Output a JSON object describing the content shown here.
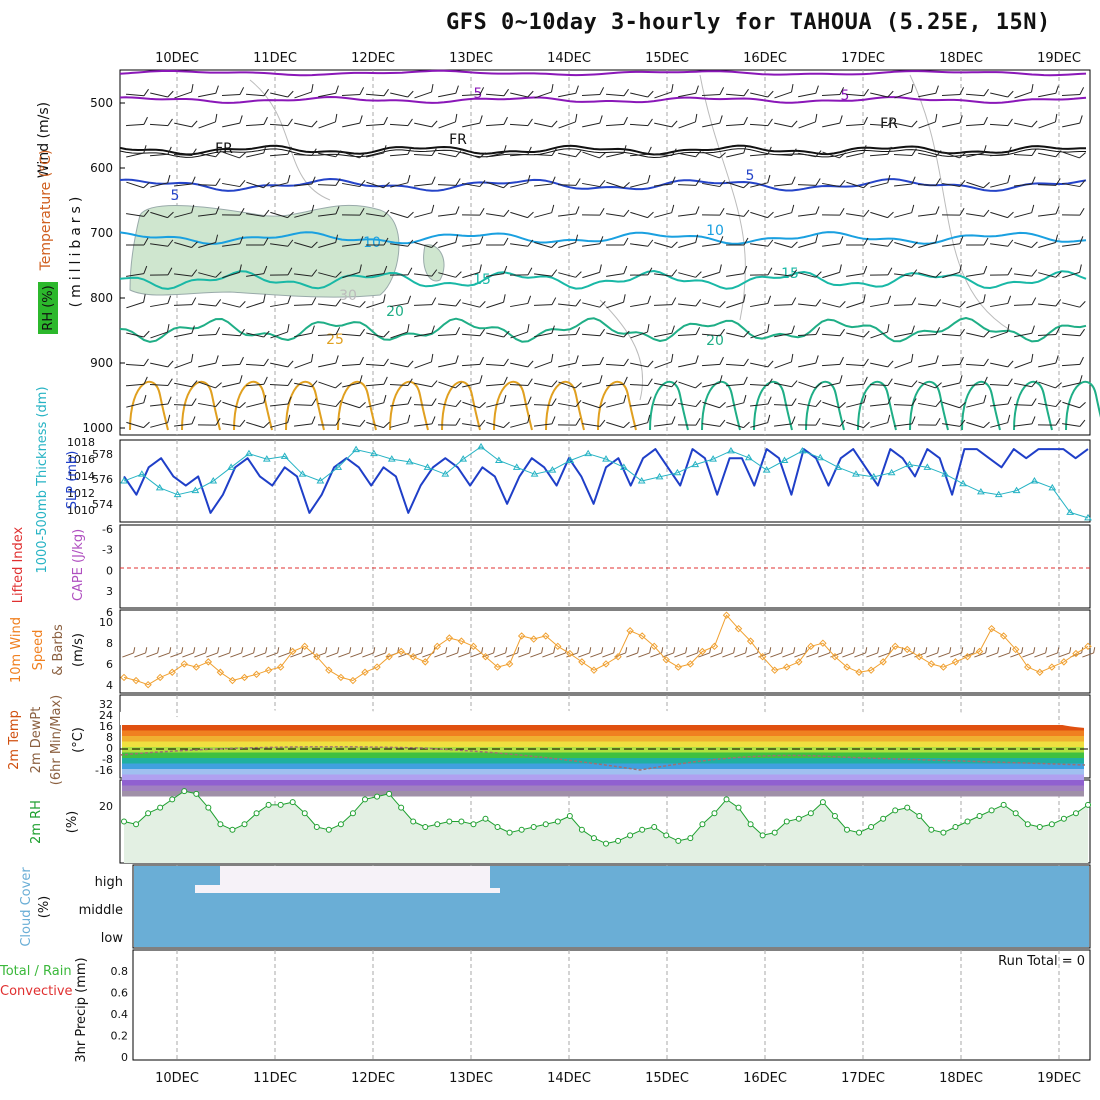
{
  "title": "GFS 0~10day 3-hourly for TAHOUA (5.25E, 15N)",
  "colors": {
    "wind_barb": "#222222",
    "iso_500": "#8a17b8",
    "iso_fr": "#111111",
    "iso_5": "#2544c8",
    "iso_10": "#1aa0e0",
    "iso_15": "#19b8a6",
    "iso_20": "#1fae86",
    "iso_25": "#e0a020",
    "rh_fill": "#cfe6cf",
    "slp": "#1f3fc8",
    "thickness": "#26b3c4",
    "wind10": "#f0a030",
    "temp_warm": "#d05010",
    "rh2m": "#1fa030",
    "cloud": "#6aaed6",
    "precip_total": "#3bb83b",
    "precip_conv": "#e03030"
  },
  "date_axis": [
    "10DEC",
    "11DEC",
    "12DEC",
    "13DEC",
    "14DEC",
    "15DEC",
    "16DEC",
    "17DEC",
    "18DEC",
    "19DEC"
  ],
  "panels": {
    "upper": {
      "ylabel_wind": "Wind (m/s)",
      "ylabel_temp": "Temperature (°C)",
      "ylabel_rh": "RH (%)",
      "ylabel_mb": "(millibars)",
      "ticks": [
        "500",
        "600",
        "700",
        "800",
        "900",
        "1000"
      ],
      "contour_labels": [
        "5",
        "5",
        "FR",
        "FR",
        "FR",
        "5",
        "5",
        "10",
        "10",
        "15",
        "15",
        "20",
        "20",
        "25",
        "30"
      ]
    },
    "pressure": {
      "ylabel_thick": "1000-500mb Thickness (dm)",
      "ylabel_slp": "SLP (mb)",
      "left_ticks": [
        "578",
        "576",
        "574"
      ],
      "right_ticks": [
        "1018",
        "1016",
        "1014",
        "1012",
        "1010"
      ]
    },
    "stability": {
      "ylabel_li": "Lifted Index",
      "ylabel_cape": "CAPE (J/kg)",
      "ticks": [
        "-6",
        "-3",
        "0",
        "3",
        "6"
      ]
    },
    "wind10m": {
      "ylabel_a": "10m Wind",
      "ylabel_b": "Speed",
      "ylabel_c": "& Barbs",
      "ylabel_unit": "(m/s)",
      "ticks": [
        "10",
        "8",
        "6",
        "4"
      ]
    },
    "temp2m": {
      "ylabel_a": "2m Temp",
      "ylabel_b": "2m DewPt",
      "ylabel_c": "(6hr Min/Max)",
      "ylabel_unit": "(°C)",
      "ticks": [
        "32",
        "24",
        "16",
        "8",
        "0",
        "-8",
        "-16"
      ]
    },
    "rh2m": {
      "ylabel": "2m RH",
      "unit": "(%)",
      "ticks": [
        "20"
      ]
    },
    "cloud": {
      "ylabel": "Cloud Cover",
      "unit": "(%)",
      "levels": [
        "high",
        "middle",
        "low"
      ]
    },
    "precip": {
      "ylabel_a": "Total / Rain",
      "ylabel_b": "Convective",
      "ylabel_c": "3hr Precip (mm)",
      "ticks": [
        "0.8",
        "0.6",
        "0.4",
        "0.2",
        "0"
      ],
      "run_total": "Run Total = 0"
    }
  },
  "chart_data": [
    {
      "type": "line",
      "name": "SLP (mb)",
      "ylim": [
        1009,
        1018
      ],
      "x_step_hours": 6,
      "values": [
        1014,
        1012,
        1015,
        1016,
        1014,
        1013,
        1014,
        1010,
        1012,
        1015,
        1016,
        1014,
        1013,
        1015,
        1014,
        1010,
        1012,
        1015,
        1016,
        1015,
        1013,
        1015,
        1014,
        1010,
        1013,
        1015,
        1016,
        1015,
        1013,
        1015,
        1014,
        1011,
        1014,
        1016,
        1015,
        1013,
        1016,
        1014,
        1011,
        1015,
        1016,
        1013,
        1016,
        1017,
        1015,
        1013,
        1017,
        1016,
        1012,
        1016,
        1016,
        1013,
        1017,
        1016,
        1012,
        1017,
        1016,
        1013,
        1016,
        1017,
        1015,
        1013,
        1017,
        1016,
        1014,
        1017,
        1016,
        1012,
        1017,
        1017,
        1016,
        1015,
        1017,
        1016,
        1017,
        1017,
        1017,
        1016,
        1017
      ]
    },
    {
      "type": "line",
      "name": "1000-500mb Thickness (dm)",
      "ylim": [
        573,
        579
      ],
      "x_step_hours": 6,
      "values": [
        576,
        576.5,
        575.5,
        575,
        575.3,
        576,
        577,
        578,
        577.6,
        577.8,
        576.5,
        576,
        577,
        578.3,
        578,
        577.6,
        577.4,
        577,
        576.5,
        577.6,
        578.5,
        577.5,
        577,
        576.5,
        576.8,
        577.5,
        578,
        577.6,
        577,
        576,
        576.3,
        576.6,
        577.2,
        577.6,
        578.2,
        577.7,
        576.8,
        577.5,
        578.2,
        577.7,
        577,
        576.5,
        576.3,
        576.6,
        577.2,
        577,
        576.5,
        575.8,
        575.2,
        575,
        575.3,
        576,
        575.5,
        573.7,
        573.3
      ]
    },
    {
      "type": "line",
      "name": "10m Wind Speed (m/s)",
      "ylim": [
        3,
        11
      ],
      "x_step_hours": 3,
      "values": [
        4.5,
        4.2,
        3.8,
        4.5,
        5,
        5.8,
        5.5,
        6,
        5,
        4.2,
        4.5,
        4.8,
        5.2,
        5.5,
        7,
        7.5,
        6.5,
        5.2,
        4.5,
        4.2,
        5,
        5.5,
        6.5,
        7,
        6.5,
        6,
        7.5,
        8.3,
        8,
        7.5,
        6.5,
        5.5,
        5.8,
        8.5,
        8.2,
        8.5,
        7.5,
        6.8,
        6,
        5.2,
        5.8,
        6.5,
        9,
        8.5,
        7.5,
        6.2,
        5.5,
        5.8,
        7,
        7.5,
        10.5,
        9.2,
        8,
        6.5,
        5.2,
        5.5,
        6,
        7.5,
        7.8,
        6.5,
        5.5,
        5,
        5.2,
        6,
        7.5,
        7.2,
        6.5,
        5.8,
        5.5,
        6,
        6.5,
        7,
        9.2,
        8.5,
        7.2,
        5.5,
        5,
        5.5,
        6,
        6.8,
        7.5
      ]
    },
    {
      "type": "line",
      "name": "2m RH (%)",
      "ylim": [
        0,
        30
      ],
      "x_step_hours": 3,
      "values": [
        15,
        14,
        18,
        20,
        23,
        26,
        25,
        20,
        14,
        12,
        14,
        18,
        21,
        21,
        22,
        18,
        13,
        12,
        14,
        18,
        23,
        24,
        25,
        20,
        15,
        13,
        14,
        15,
        15,
        14,
        16,
        13,
        11,
        12,
        13,
        14,
        15,
        17,
        12,
        9,
        7,
        8,
        10,
        12,
        13,
        10,
        8,
        9,
        14,
        18,
        23,
        20,
        14,
        10,
        11,
        15,
        16,
        18,
        22,
        17,
        12,
        11,
        13,
        16,
        19,
        20,
        17,
        12,
        11,
        13,
        15,
        17,
        19,
        21,
        18,
        14,
        13,
        14,
        16,
        18,
        21
      ]
    },
    {
      "type": "bar",
      "name": "3hr Precip (mm)",
      "ylim": [
        0,
        1
      ],
      "values": [
        0,
        0,
        0,
        0,
        0,
        0,
        0,
        0,
        0,
        0
      ]
    }
  ]
}
